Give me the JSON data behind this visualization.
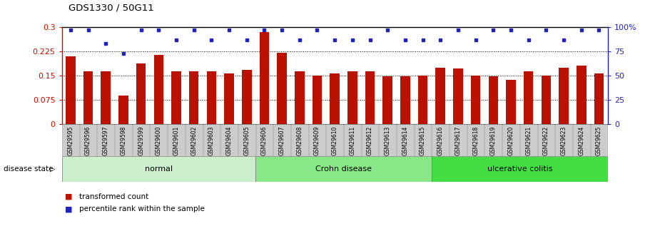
{
  "title": "GDS1330 / 50G11",
  "samples": [
    "GSM29595",
    "GSM29596",
    "GSM29597",
    "GSM29598",
    "GSM29599",
    "GSM29600",
    "GSM29601",
    "GSM29602",
    "GSM29603",
    "GSM29604",
    "GSM29605",
    "GSM29606",
    "GSM29607",
    "GSM29608",
    "GSM29609",
    "GSM29610",
    "GSM29611",
    "GSM29612",
    "GSM29613",
    "GSM29614",
    "GSM29615",
    "GSM29616",
    "GSM29617",
    "GSM29618",
    "GSM29619",
    "GSM29620",
    "GSM29621",
    "GSM29622",
    "GSM29623",
    "GSM29624",
    "GSM29625"
  ],
  "bar_values": [
    0.21,
    0.163,
    0.163,
    0.088,
    0.187,
    0.213,
    0.163,
    0.163,
    0.163,
    0.157,
    0.168,
    0.284,
    0.22,
    0.163,
    0.15,
    0.157,
    0.163,
    0.163,
    0.148,
    0.148,
    0.15,
    0.175,
    0.173,
    0.15,
    0.148,
    0.137,
    0.163,
    0.15,
    0.175,
    0.182,
    0.157
  ],
  "percentile_values": [
    97,
    97,
    83,
    73,
    97,
    97,
    87,
    97,
    87,
    97,
    87,
    97,
    97,
    87,
    97,
    87,
    87,
    87,
    97,
    87,
    87,
    87,
    97,
    87,
    97,
    97,
    87,
    97,
    87,
    97,
    97
  ],
  "groups": [
    {
      "label": "normal",
      "start": 0,
      "end": 11,
      "color": "#ccf0cc"
    },
    {
      "label": "Crohn disease",
      "start": 11,
      "end": 21,
      "color": "#88e888"
    },
    {
      "label": "ulcerative colitis",
      "start": 21,
      "end": 31,
      "color": "#44dd44"
    }
  ],
  "bar_color": "#bb1100",
  "dot_color": "#2222bb",
  "ylim_left": [
    0,
    0.3
  ],
  "ylim_right": [
    0,
    100
  ],
  "yticks_left": [
    0,
    0.075,
    0.15,
    0.225,
    0.3
  ],
  "ytick_labels_left": [
    "0",
    "0.075",
    "0.15",
    "0.225",
    "0.3"
  ],
  "yticks_right": [
    0,
    25,
    50,
    75,
    100
  ],
  "ytick_labels_right": [
    "0",
    "25",
    "50",
    "75",
    "100%"
  ],
  "label_transformed": "transformed count",
  "label_percentile": "percentile rank within the sample",
  "disease_state_label": "disease state"
}
